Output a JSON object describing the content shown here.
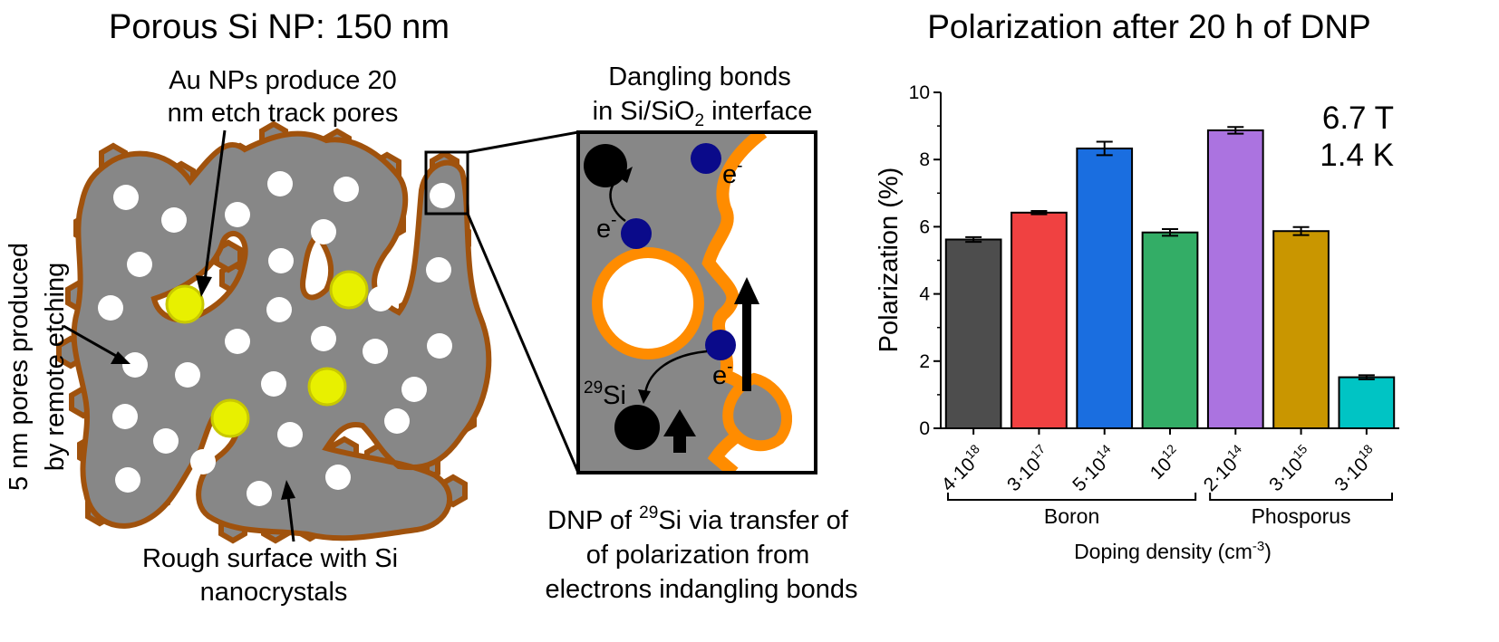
{
  "left": {
    "title": "Porous Si NP: 150 nm",
    "label_au_line1": "Au NPs produce 20",
    "label_au_line2": "nm etch track pores",
    "label_pores_line1": "5 nm pores produced",
    "label_pores_line2": "by remote etching",
    "label_rough_line1": "Rough surface with Si",
    "label_rough_line2": "nanocrystals"
  },
  "middle": {
    "title_line1": "Dangling bonds",
    "title_line2_a": "in Si/SiO",
    "title_line2_sub": "2",
    "title_line2_b": " interface",
    "electron": "e",
    "electron_sup": "-",
    "si_sup": "29",
    "si_label": "Si",
    "caption_line1_a": "DNP of ",
    "caption_line1_sup": "29",
    "caption_line1_b": "Si via transfer of",
    "caption_line2": "of polarization from",
    "caption_line3": "electrons indangling bonds"
  },
  "colors": {
    "particle_fill": "#878787",
    "particle_edge": "#a0520d",
    "au_np": "#e8f000",
    "interface_orange": "#ff8c00",
    "electron_blue": "#0a0a8a"
  },
  "chart_data": {
    "type": "bar",
    "title": "Polarization after 20 h of DNP",
    "ylabel": "Polarization (%)",
    "xlabel_a": "Doping density (cm",
    "xlabel_sup": "-3",
    "xlabel_b": ")",
    "ylim": [
      0,
      10
    ],
    "yticks": [
      "0",
      "2",
      "4",
      "6",
      "8",
      "10"
    ],
    "annotation_line1": "6.7 T",
    "annotation_line2": "1.4 K",
    "categories": [
      {
        "base": "4·10",
        "exp": "18"
      },
      {
        "base": "3·10",
        "exp": "17"
      },
      {
        "base": "5·10",
        "exp": "14"
      },
      {
        "base": "10",
        "exp": "12"
      },
      {
        "base": "2·10",
        "exp": "14"
      },
      {
        "base": "3·10",
        "exp": "15"
      },
      {
        "base": "3·10",
        "exp": "18"
      }
    ],
    "values": [
      5.62,
      6.42,
      8.33,
      5.83,
      8.87,
      5.87,
      1.52
    ],
    "errors": [
      0.07,
      0.05,
      0.2,
      0.1,
      0.1,
      0.12,
      0.06
    ],
    "colors": [
      "#4d4d4d",
      "#f04141",
      "#1a6ee0",
      "#33ad66",
      "#ab73e0",
      "#c99600",
      "#00c4c4"
    ],
    "groups": [
      {
        "name": "Boron",
        "from": 0,
        "to": 3
      },
      {
        "name": "Phosporus",
        "from": 4,
        "to": 6
      }
    ]
  }
}
